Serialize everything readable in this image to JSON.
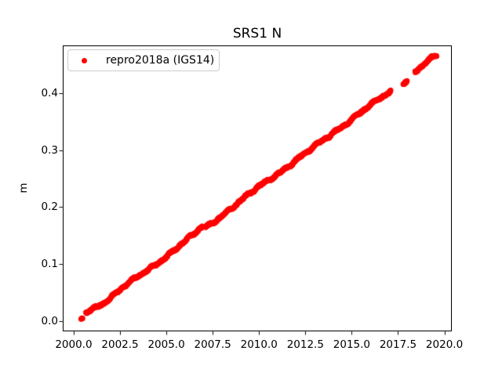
{
  "figure": {
    "background": "#ffffff",
    "text_color": "#000000"
  },
  "chart_data": {
    "type": "scatter",
    "title": "SRS1 N",
    "xlabel": "",
    "ylabel": "m",
    "grid": false,
    "xlim": [
      1999.41,
      2020.4
    ],
    "ylim": [
      -0.018,
      0.484
    ],
    "xtick_values": [
      2000.0,
      2002.5,
      2005.0,
      2007.5,
      2010.0,
      2012.5,
      2015.0,
      2017.5,
      2020.0
    ],
    "xtick_labels": [
      "2000.0",
      "2002.5",
      "2005.0",
      "2007.5",
      "2010.0",
      "2012.5",
      "2015.0",
      "2017.5",
      "2020.0"
    ],
    "ytick_values": [
      0.0,
      0.1,
      0.2,
      0.3,
      0.4
    ],
    "ytick_labels": [
      "0.0",
      "0.1",
      "0.2",
      "0.3",
      "0.4"
    ],
    "legend": {
      "position": "upper-left",
      "entries": [
        {
          "label": "repro2018a (IGS14)",
          "marker": "dot",
          "color": "#ff0000"
        }
      ]
    },
    "series": [
      {
        "name": "repro2018a (IGS14)",
        "color": "#ff0000",
        "marker": "circle",
        "marker_diameter_px": 7,
        "description": "Dense GNSS daily position time series rising linearly at ~0.024 m/yr from ~0.00 m in 2000.4 to ~0.465 m in 2019.6",
        "trend": {
          "t0": 2000.4,
          "v0": 0.002,
          "rate": 0.02413
        },
        "first_point": [
          2000.4,
          0.002
        ],
        "last_point": [
          2019.6,
          0.465
        ],
        "segments": [
          {
            "start": 2000.4,
            "end": 2000.48
          },
          {
            "start": 2000.66,
            "end": 2006.94
          },
          {
            "start": 2007.1,
            "end": 2017.1
          },
          {
            "start": 2017.78,
            "end": 2017.98
          },
          {
            "start": 2018.42,
            "end": 2019.58
          }
        ],
        "sample_step": 0.02,
        "residual_nodes": [
          [
            2000.35,
            0.0
          ],
          [
            2000.62,
            0.0
          ],
          [
            2000.66,
            0.008
          ],
          [
            2001.1,
            0.005
          ],
          [
            2001.6,
            0.001
          ],
          [
            2003.0,
            0.002
          ],
          [
            2005.0,
            0.001
          ],
          [
            2006.5,
            0.003
          ],
          [
            2006.9,
            0.006
          ],
          [
            2007.1,
            0.0
          ],
          [
            2010.0,
            0.002
          ],
          [
            2013.0,
            0.0
          ],
          [
            2015.0,
            0.001
          ],
          [
            2017.1,
            -0.002
          ],
          [
            2017.85,
            -0.003
          ],
          [
            2018.42,
            0.002
          ],
          [
            2019.58,
            0.002
          ]
        ],
        "texture": {
          "amps": [
            0.0014,
            0.001,
            0.0016
          ],
          "periods": [
            1.0,
            0.52,
            3.3
          ],
          "phases": [
            0.3,
            1.2,
            2.1
          ],
          "noise": 0.0015,
          "seed": 42
        }
      }
    ]
  }
}
